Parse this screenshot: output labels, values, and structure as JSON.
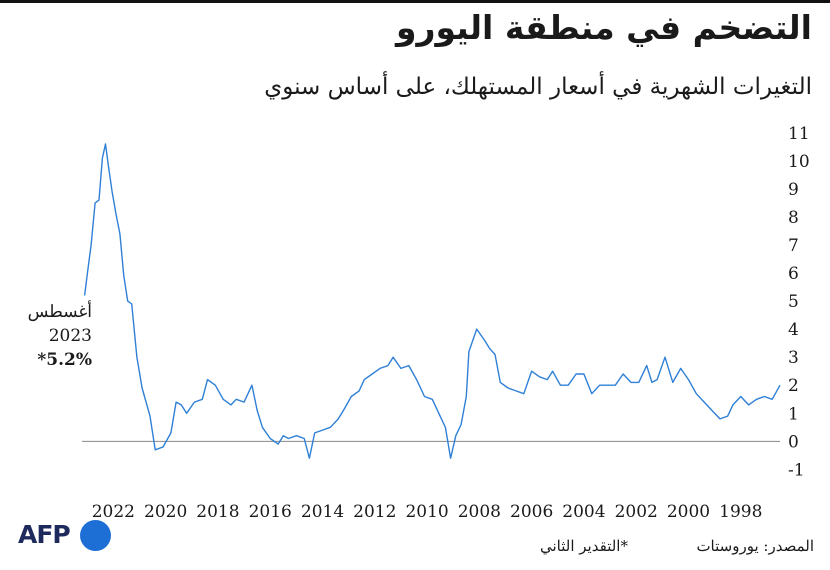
{
  "header": {
    "title": "التضخم في منطقة اليورو",
    "subtitle": "التغيرات الشهرية في أسعار المستهلك، على أساس سنوي"
  },
  "annotation": {
    "line1": "أغسطس",
    "line2": "2023",
    "line3": "*5.2%"
  },
  "footer": {
    "source": "المصدر: يوروستات",
    "note": "*التقدير الثاني",
    "logo_text": "AFP"
  },
  "colors": {
    "line": "#2f80d6",
    "zero_line": "#888888",
    "logo_dot": "#1d6fd6",
    "logo_text": "#1f2a5c"
  },
  "chart_data": {
    "type": "line",
    "title": "التضخم في منطقة اليورو",
    "subtitle": "التغيرات الشهرية في أسعار المستهلك، على أساس سنوي",
    "xlim": [
      1997.0,
      2023.7
    ],
    "x_reversed": true,
    "ylim": [
      -1.2,
      11.1
    ],
    "yticks": [
      -1,
      0,
      1,
      2,
      3,
      4,
      5,
      6,
      7,
      8,
      9,
      10,
      11
    ],
    "xticks": [
      1998,
      2000,
      2002,
      2004,
      2006,
      2008,
      2010,
      2012,
      2014,
      2016,
      2018,
      2020,
      2022
    ],
    "grid": false,
    "series": [
      {
        "values": [
          [
            1997.0,
            2.0
          ],
          [
            1997.3,
            1.5
          ],
          [
            1997.6,
            1.6
          ],
          [
            1997.9,
            1.5
          ],
          [
            1998.2,
            1.3
          ],
          [
            1998.5,
            1.6
          ],
          [
            1998.8,
            1.3
          ],
          [
            1999.0,
            0.9
          ],
          [
            1999.3,
            0.8
          ],
          [
            1999.6,
            1.1
          ],
          [
            1999.9,
            1.4
          ],
          [
            2000.2,
            1.7
          ],
          [
            2000.5,
            2.2
          ],
          [
            2000.8,
            2.6
          ],
          [
            2001.1,
            2.1
          ],
          [
            2001.4,
            3.0
          ],
          [
            2001.7,
            2.2
          ],
          [
            2001.9,
            2.1
          ],
          [
            2002.1,
            2.7
          ],
          [
            2002.4,
            2.1
          ],
          [
            2002.7,
            2.1
          ],
          [
            2003.0,
            2.4
          ],
          [
            2003.3,
            2.0
          ],
          [
            2003.6,
            2.0
          ],
          [
            2003.9,
            2.0
          ],
          [
            2004.2,
            1.7
          ],
          [
            2004.5,
            2.4
          ],
          [
            2004.8,
            2.4
          ],
          [
            2005.1,
            2.0
          ],
          [
            2005.4,
            2.0
          ],
          [
            2005.7,
            2.5
          ],
          [
            2005.9,
            2.2
          ],
          [
            2006.2,
            2.3
          ],
          [
            2006.5,
            2.5
          ],
          [
            2006.8,
            1.7
          ],
          [
            2007.1,
            1.8
          ],
          [
            2007.4,
            1.9
          ],
          [
            2007.7,
            2.1
          ],
          [
            2007.9,
            3.1
          ],
          [
            2008.1,
            3.3
          ],
          [
            2008.3,
            3.6
          ],
          [
            2008.6,
            4.0
          ],
          [
            2008.9,
            3.2
          ],
          [
            2009.0,
            1.6
          ],
          [
            2009.2,
            0.6
          ],
          [
            2009.4,
            0.2
          ],
          [
            2009.6,
            -0.6
          ],
          [
            2009.8,
            0.5
          ],
          [
            2010.0,
            0.9
          ],
          [
            2010.3,
            1.5
          ],
          [
            2010.6,
            1.6
          ],
          [
            2010.9,
            2.2
          ],
          [
            2011.2,
            2.7
          ],
          [
            2011.5,
            2.6
          ],
          [
            2011.8,
            3.0
          ],
          [
            2012.0,
            2.7
          ],
          [
            2012.3,
            2.6
          ],
          [
            2012.6,
            2.4
          ],
          [
            2012.9,
            2.2
          ],
          [
            2013.1,
            1.8
          ],
          [
            2013.4,
            1.6
          ],
          [
            2013.7,
            1.1
          ],
          [
            2013.9,
            0.8
          ],
          [
            2014.2,
            0.5
          ],
          [
            2014.5,
            0.4
          ],
          [
            2014.8,
            0.3
          ],
          [
            2015.0,
            -0.6
          ],
          [
            2015.2,
            0.1
          ],
          [
            2015.5,
            0.2
          ],
          [
            2015.8,
            0.1
          ],
          [
            2016.0,
            0.2
          ],
          [
            2016.2,
            -0.1
          ],
          [
            2016.5,
            0.1
          ],
          [
            2016.8,
            0.5
          ],
          [
            2017.0,
            1.1
          ],
          [
            2017.2,
            2.0
          ],
          [
            2017.5,
            1.4
          ],
          [
            2017.8,
            1.5
          ],
          [
            2018.0,
            1.3
          ],
          [
            2018.3,
            1.5
          ],
          [
            2018.6,
            2.0
          ],
          [
            2018.9,
            2.2
          ],
          [
            2019.1,
            1.5
          ],
          [
            2019.4,
            1.4
          ],
          [
            2019.7,
            1.0
          ],
          [
            2019.9,
            1.3
          ],
          [
            2020.1,
            1.4
          ],
          [
            2020.3,
            0.3
          ],
          [
            2020.6,
            -0.2
          ],
          [
            2020.9,
            -0.3
          ],
          [
            2021.1,
            0.9
          ],
          [
            2021.4,
            1.9
          ],
          [
            2021.6,
            3.0
          ],
          [
            2021.8,
            4.9
          ],
          [
            2021.95,
            5.0
          ],
          [
            2022.1,
            5.9
          ],
          [
            2022.25,
            7.4
          ],
          [
            2022.4,
            8.1
          ],
          [
            2022.55,
            8.9
          ],
          [
            2022.7,
            9.9
          ],
          [
            2022.8,
            10.6
          ],
          [
            2022.92,
            10.1
          ],
          [
            2023.05,
            8.6
          ],
          [
            2023.2,
            8.5
          ],
          [
            2023.35,
            7.0
          ],
          [
            2023.48,
            6.1
          ],
          [
            2023.6,
            5.2
          ]
        ]
      }
    ]
  }
}
